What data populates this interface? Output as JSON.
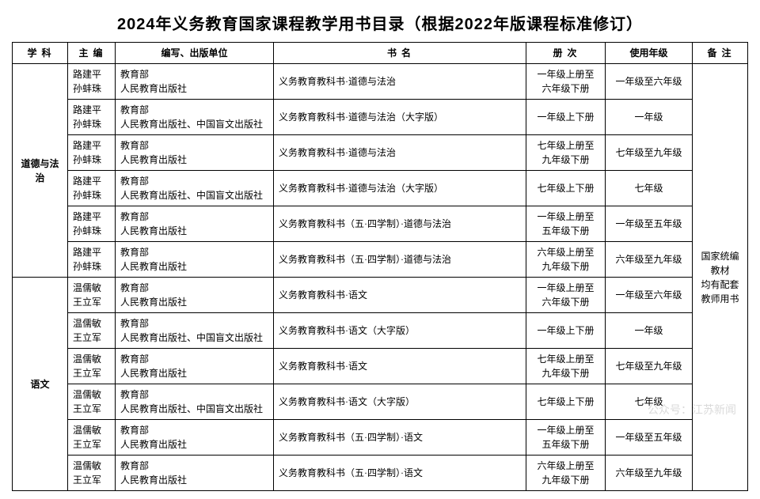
{
  "title": "2024年义务教育国家课程教学用书目录（根据2022年版课程标准修订）",
  "headers": {
    "subject": "学科",
    "editor": "主编",
    "publisher": "编写、出版单位",
    "book": "书名",
    "volume": "册次",
    "grade": "使用年级",
    "remark": "备注"
  },
  "subjects": {
    "a": "道德与法治",
    "b": "语文"
  },
  "remark_text": "国家统编教材\n均有配套教师用书",
  "rows": [
    {
      "editor": "路建平\n孙蚌珠",
      "publisher": "教育部\n人民教育出版社",
      "book": "义务教育教科书·道德与法治",
      "volume": "一年级上册至\n六年级下册",
      "grade": "一年级至六年级"
    },
    {
      "editor": "路建平\n孙蚌珠",
      "publisher": "教育部\n人民教育出版社、中国盲文出版社",
      "book": "义务教育教科书·道德与法治（大字版）",
      "volume": "一年级上下册",
      "grade": "一年级"
    },
    {
      "editor": "路建平\n孙蚌珠",
      "publisher": "教育部\n人民教育出版社",
      "book": "义务教育教科书·道德与法治",
      "volume": "七年级上册至\n九年级下册",
      "grade": "七年级至九年级"
    },
    {
      "editor": "路建平\n孙蚌珠",
      "publisher": "教育部\n人民教育出版社、中国盲文出版社",
      "book": "义务教育教科书·道德与法治（大字版）",
      "volume": "七年级上下册",
      "grade": "七年级"
    },
    {
      "editor": "路建平\n孙蚌珠",
      "publisher": "教育部\n人民教育出版社",
      "book": "义务教育教科书（五·四学制）·道德与法治",
      "volume": "一年级上册至\n五年级下册",
      "grade": "一年级至五年级"
    },
    {
      "editor": "路建平\n孙蚌珠",
      "publisher": "教育部\n人民教育出版社",
      "book": "义务教育教科书（五·四学制）·道德与法治",
      "volume": "六年级上册至\n九年级下册",
      "grade": "六年级至九年级"
    },
    {
      "editor": "温儒敏\n王立军",
      "publisher": "教育部\n人民教育出版社",
      "book": "义务教育教科书·语文",
      "volume": "一年级上册至\n六年级下册",
      "grade": "一年级至六年级"
    },
    {
      "editor": "温儒敏\n王立军",
      "publisher": "教育部\n人民教育出版社、中国盲文出版社",
      "book": "义务教育教科书·语文（大字版）",
      "volume": "一年级上下册",
      "grade": "一年级"
    },
    {
      "editor": "温儒敏\n王立军",
      "publisher": "教育部\n人民教育出版社",
      "book": "义务教育教科书·语文",
      "volume": "七年级上册至\n九年级下册",
      "grade": "七年级至九年级"
    },
    {
      "editor": "温儒敏\n王立军",
      "publisher": "教育部\n人民教育出版社、中国盲文出版社",
      "book": "义务教育教科书·语文（大字版）",
      "volume": "七年级上下册",
      "grade": "七年级"
    },
    {
      "editor": "温儒敏\n王立军",
      "publisher": "教育部\n人民教育出版社",
      "book": "义务教育教科书（五·四学制）·语文",
      "volume": "一年级上册至\n五年级下册",
      "grade": "一年级至五年级"
    },
    {
      "editor": "温儒敏\n王立军",
      "publisher": "教育部\n人民教育出版社",
      "book": "义务教育教科书（五·四学制）·语文",
      "volume": "六年级上册至\n九年级下册",
      "grade": "六年级至九年级"
    }
  ],
  "watermark": "公众号：江苏新闻"
}
